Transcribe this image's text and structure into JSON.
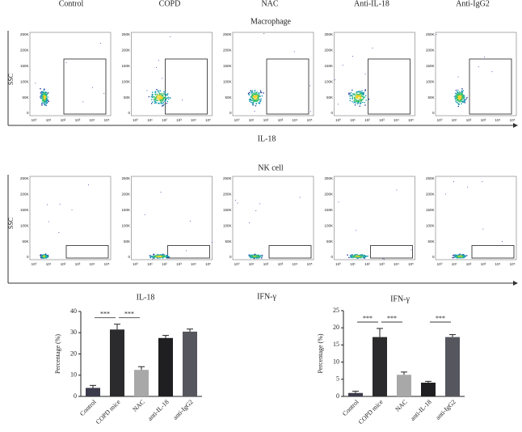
{
  "columns": [
    "Control",
    "COPD",
    "NAC",
    "Anti-IL-18",
    "Anti-IgG2"
  ],
  "flow": [
    {
      "title": "Macrophage",
      "x_label": "IL-18",
      "y_label": "SSC",
      "yticks": [
        "250K",
        "200K",
        "150K",
        "100K",
        "50K",
        "0"
      ],
      "xticks": [
        "10⁰",
        "10¹",
        "10²",
        "10³",
        "10⁴",
        "10⁵"
      ]
    },
    {
      "title": "NK cell",
      "x_label": "IFN-γ",
      "y_label": "SSC",
      "yticks": [
        "250K",
        "200K",
        "150K",
        "100K",
        "50K",
        "0"
      ],
      "xticks": [
        "10⁰",
        "10¹",
        "10²",
        "10³",
        "10⁴",
        "10⁵"
      ]
    }
  ],
  "chart_data": [
    {
      "type": "bar",
      "title": "IL-18",
      "y_label": "Percentage (%)",
      "categories": [
        "Control",
        "COPD mice",
        "NAC",
        "anti-IL-18",
        "anti-IgG2"
      ],
      "values": [
        4,
        31.5,
        12.5,
        27.5,
        30.5
      ],
      "errors": [
        1.2,
        2.5,
        1.5,
        1.2,
        1.2
      ],
      "colors": [
        "#3b3b4c",
        "#2b2b2d",
        "#a8a8a8",
        "#1f1f22",
        "#56565f"
      ],
      "ylim": [
        0,
        40
      ],
      "yticks": [
        0,
        10,
        20,
        30,
        40
      ],
      "significance": [
        {
          "between": [
            0,
            1
          ],
          "label": "***"
        },
        {
          "between": [
            1,
            2
          ],
          "label": "***"
        }
      ]
    },
    {
      "type": "bar",
      "title": "IFN-γ",
      "y_label": "Percentage (%)",
      "categories": [
        "Control",
        "COPD mice",
        "NAC",
        "anti-IL-18",
        "anti-IgG2"
      ],
      "values": [
        1,
        17.3,
        6.3,
        4,
        17.3
      ],
      "errors": [
        0.5,
        2.5,
        0.8,
        0.4,
        0.7
      ],
      "colors": [
        "#3b3b4c",
        "#2b2b2d",
        "#a8a8a8",
        "#1f1f22",
        "#56565f"
      ],
      "ylim": [
        0,
        25
      ],
      "yticks": [
        0,
        5,
        10,
        15,
        20,
        25
      ],
      "significance": [
        {
          "between": [
            0,
            1
          ],
          "label": "***"
        },
        {
          "between": [
            1,
            2
          ],
          "label": "***"
        },
        {
          "between": [
            3,
            4
          ],
          "label": "***"
        }
      ]
    }
  ]
}
